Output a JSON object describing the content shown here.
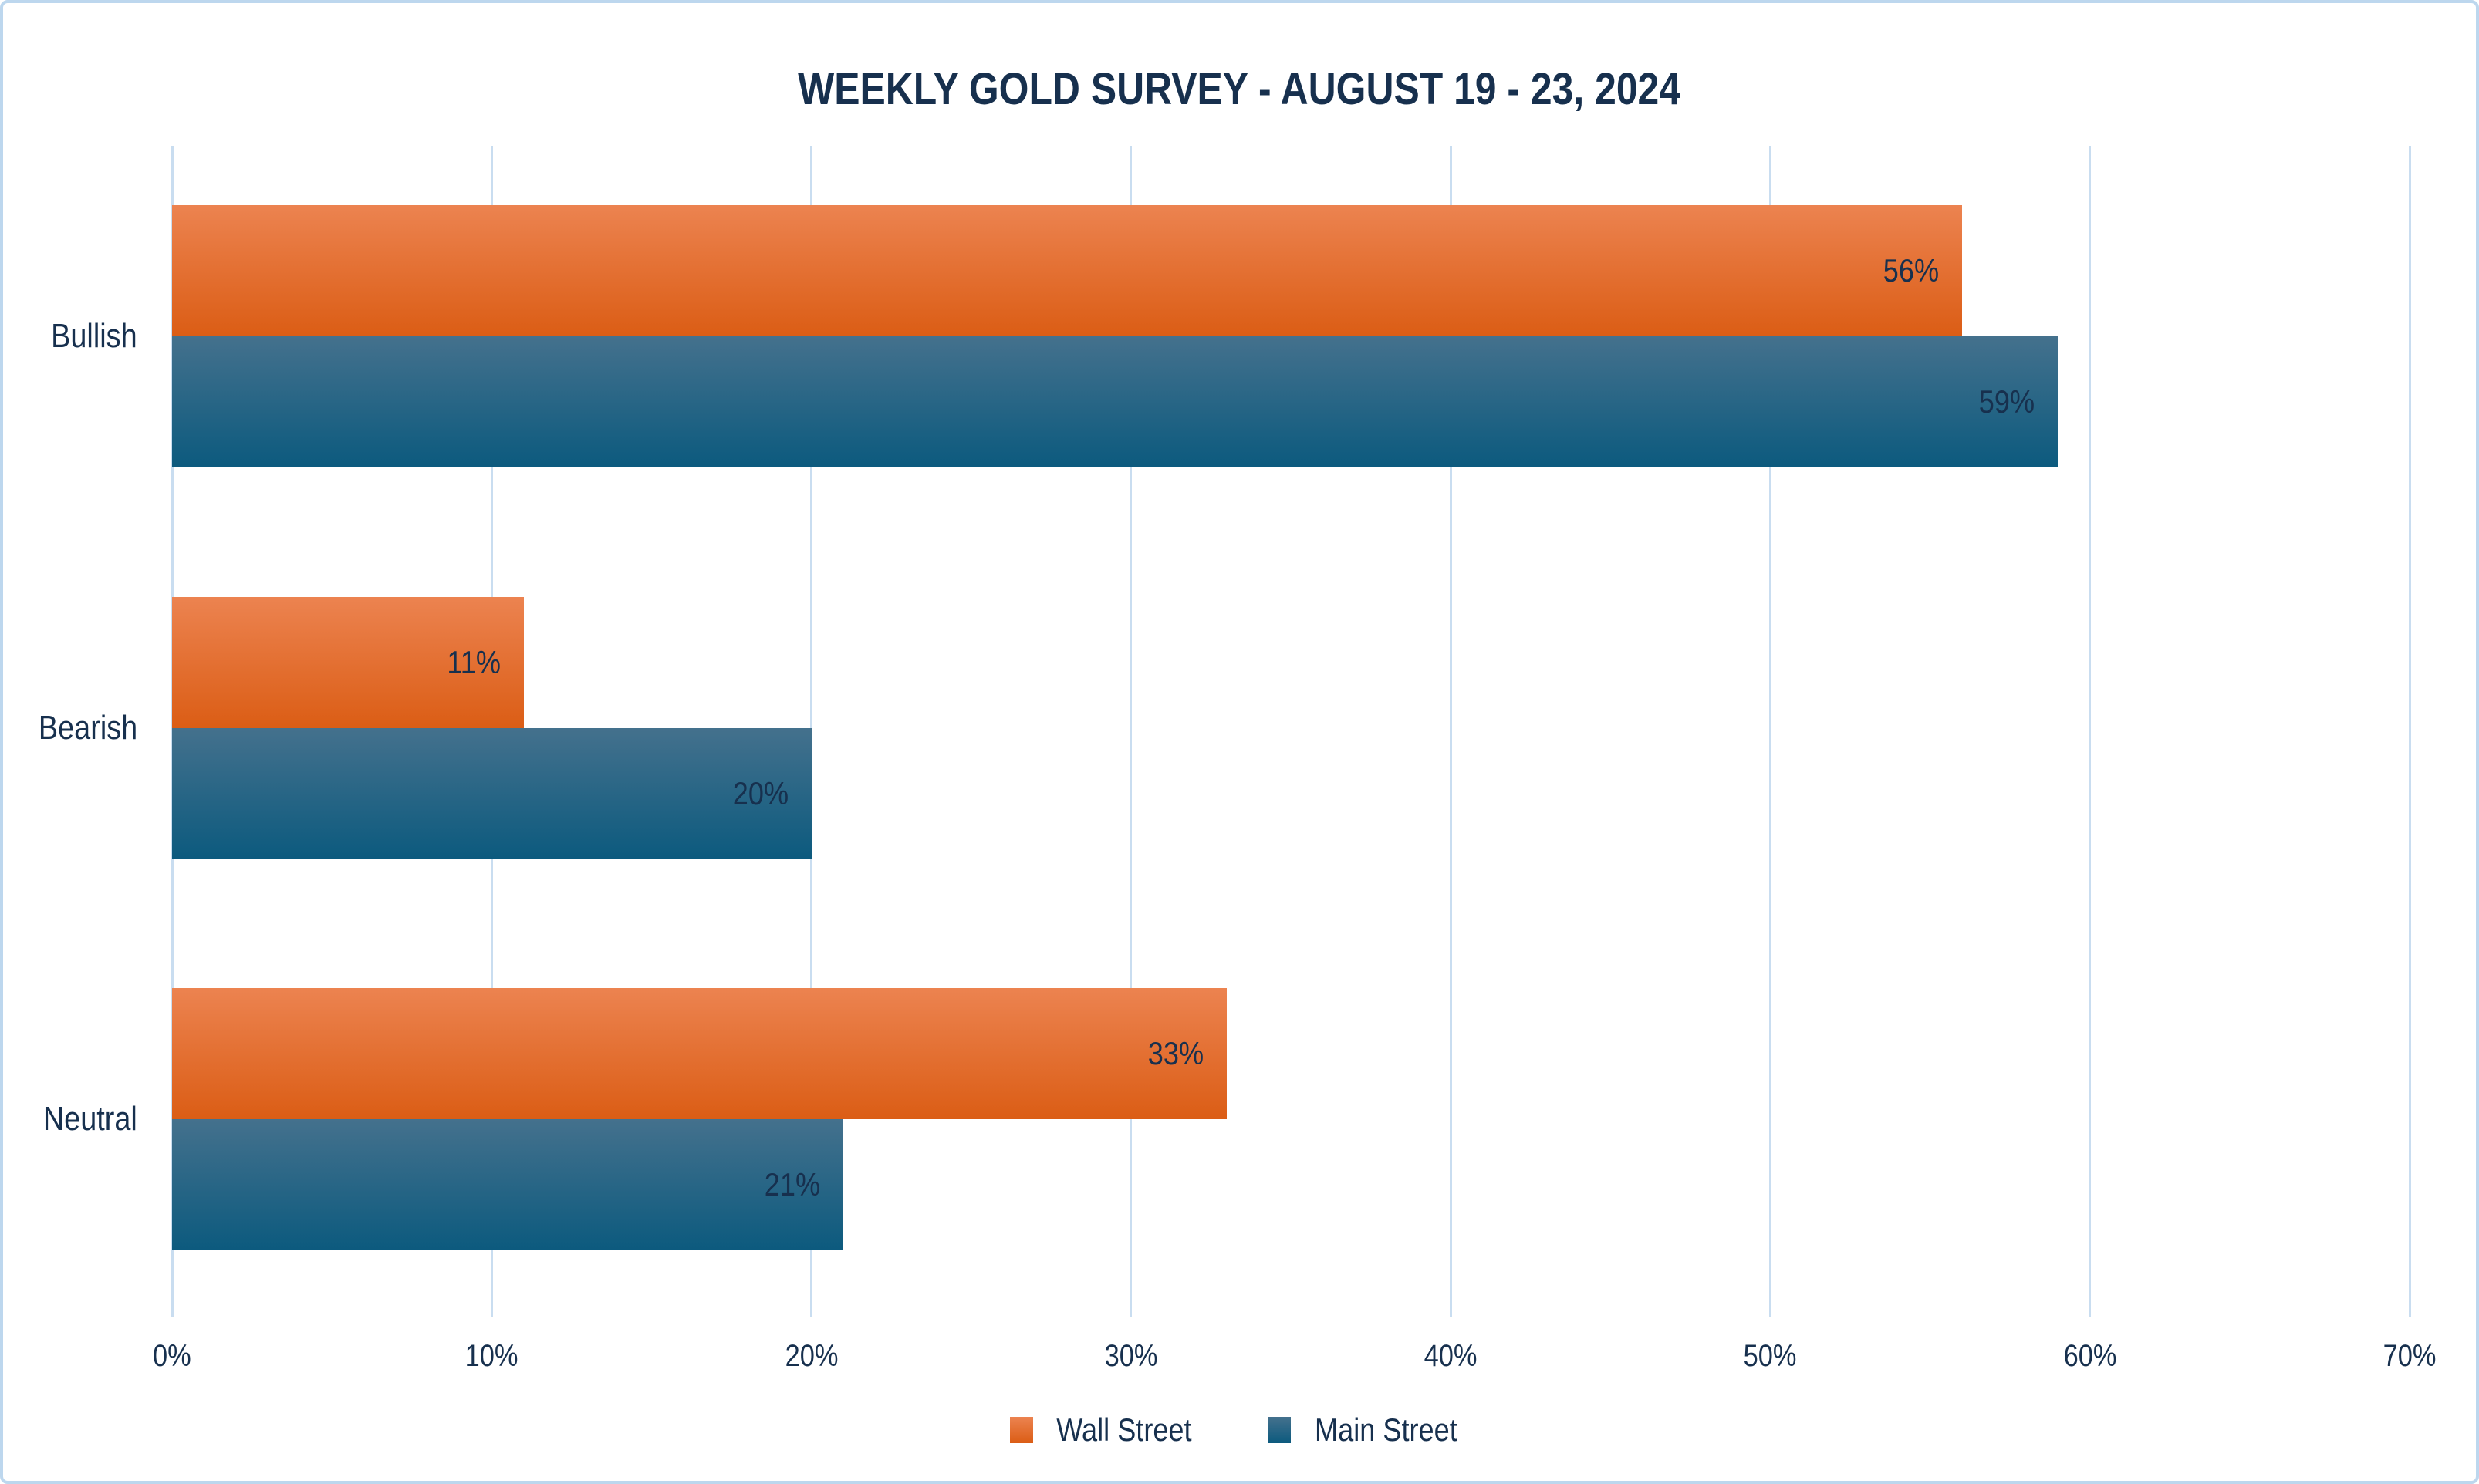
{
  "frame": {
    "background_color": "#FFFFFF",
    "border_color": "#BDD7EE"
  },
  "chart_data": {
    "type": "bar",
    "orientation": "horizontal",
    "title": "WEEKLY GOLD SURVEY - AUGUST 19 - 23, 2024",
    "categories": [
      "Bullish",
      "Bearish",
      "Neutral"
    ],
    "series": [
      {
        "name": "Wall Street",
        "values": [
          56,
          11,
          33
        ],
        "labels": [
          "56%",
          "11%",
          "33%"
        ],
        "color_top": "#EC8350",
        "color_bottom": "#DB5D15"
      },
      {
        "name": "Main Street",
        "values": [
          59,
          20,
          21
        ],
        "labels": [
          "59%",
          "20%",
          "21%"
        ],
        "color_top": "#44718D",
        "color_bottom": "#0C5A7E"
      }
    ],
    "x_axis": {
      "min": 0,
      "max": 70,
      "tick_step": 10,
      "tick_labels": [
        "0%",
        "10%",
        "20%",
        "30%",
        "40%",
        "50%",
        "60%",
        "70%"
      ]
    },
    "grid": true,
    "gridline_color": "#C9DDF0",
    "text_color": "#17304E",
    "legend_position": "bottom"
  }
}
